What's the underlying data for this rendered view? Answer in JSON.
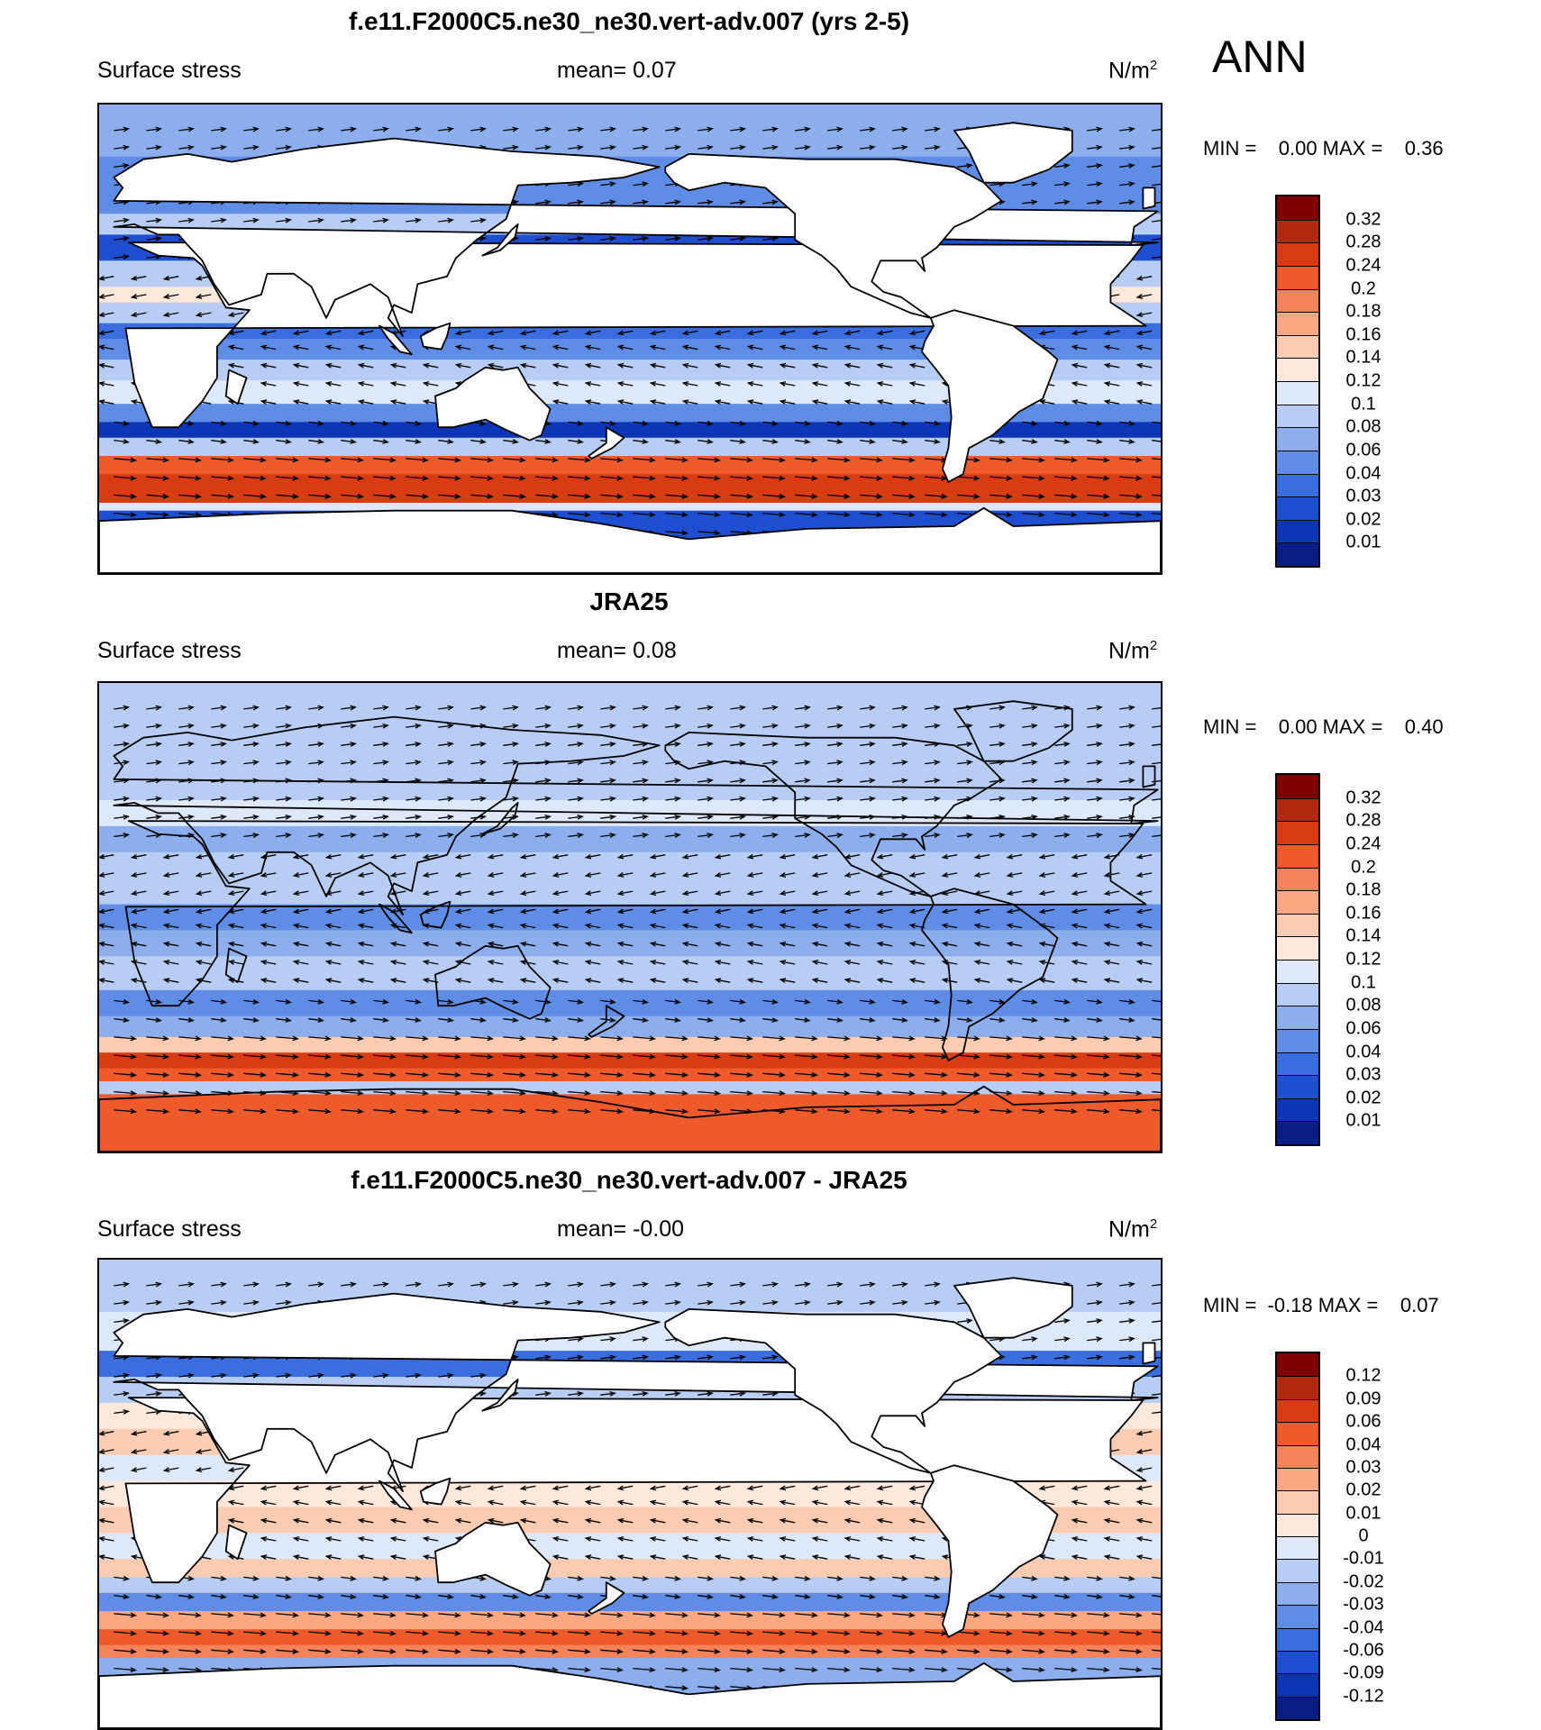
{
  "season": "ANN",
  "chart_data": [
    {
      "type": "heatmap",
      "title": "f.e11.F2000C5.ne30_ne30.vert-adv.007 (yrs 2-5)",
      "left_label": "Surface stress",
      "mean_text": "mean=   0.07",
      "units_base": "N/m",
      "units_exp": "2",
      "minmax_text": "MIN =    0.00 MAX =    0.36",
      "colorbar": {
        "levels": [
          "0.32",
          "0.28",
          "0.24",
          "0.2",
          "0.18",
          "0.16",
          "0.14",
          "0.12",
          "0.1",
          "0.08",
          "0.06",
          "0.04",
          "0.03",
          "0.02",
          "0.01"
        ],
        "colors": [
          "#800000",
          "#b22a0d",
          "#d93c10",
          "#ee5a2a",
          "#f5835a",
          "#f9a882",
          "#fbccb2",
          "#fde8dc",
          "#dde9f9",
          "#b7cdf3",
          "#8caeec",
          "#5f8ce4",
          "#3a6ddd",
          "#1f4fd1",
          "#0d35b8",
          "#0a1f86"
        ]
      },
      "bands": [
        {
          "lat": 90,
          "v": 0.06
        },
        {
          "lat": 70,
          "v": 0.05
        },
        {
          "lat": 55,
          "v": 0.04
        },
        {
          "lat": 48,
          "v": 0.09
        },
        {
          "lat": 40,
          "v": 0.02
        },
        {
          "lat": 30,
          "v": 0.09
        },
        {
          "lat": 20,
          "v": 0.12
        },
        {
          "lat": 14,
          "v": 0.08
        },
        {
          "lat": 6,
          "v": 0.03
        },
        {
          "lat": 0,
          "v": 0.05
        },
        {
          "lat": -8,
          "v": 0.08
        },
        {
          "lat": -16,
          "v": 0.11
        },
        {
          "lat": -25,
          "v": 0.04
        },
        {
          "lat": -32,
          "v": 0.015
        },
        {
          "lat": -38,
          "v": 0.09
        },
        {
          "lat": -45,
          "v": 0.2
        },
        {
          "lat": -52,
          "v": 0.27
        },
        {
          "lat": -58,
          "v": 0.25
        },
        {
          "lat": -63,
          "v": 0.1
        },
        {
          "lat": -66,
          "v": 0.02
        },
        {
          "lat": -90,
          "v": 0.01
        }
      ]
    },
    {
      "type": "heatmap",
      "title": "JRA25",
      "left_label": "Surface stress",
      "mean_text": "mean=   0.08",
      "units_base": "N/m",
      "units_exp": "2",
      "minmax_text": "MIN =    0.00 MAX =    0.40",
      "colorbar": {
        "levels": [
          "0.32",
          "0.28",
          "0.24",
          "0.2",
          "0.18",
          "0.16",
          "0.14",
          "0.12",
          "0.1",
          "0.08",
          "0.06",
          "0.04",
          "0.03",
          "0.02",
          "0.01"
        ],
        "colors": [
          "#800000",
          "#b22a0d",
          "#d93c10",
          "#ee5a2a",
          "#f5835a",
          "#f9a882",
          "#fbccb2",
          "#fde8dc",
          "#dde9f9",
          "#b7cdf3",
          "#8caeec",
          "#5f8ce4",
          "#3a6ddd",
          "#1f4fd1",
          "#0d35b8",
          "#0a1f86"
        ]
      },
      "bands": [
        {
          "lat": 90,
          "v": 0.08
        },
        {
          "lat": 70,
          "v": 0.09
        },
        {
          "lat": 55,
          "v": 0.08
        },
        {
          "lat": 45,
          "v": 0.1
        },
        {
          "lat": 35,
          "v": 0.06
        },
        {
          "lat": 25,
          "v": 0.09
        },
        {
          "lat": 15,
          "v": 0.08
        },
        {
          "lat": 5,
          "v": 0.04
        },
        {
          "lat": -5,
          "v": 0.06
        },
        {
          "lat": -15,
          "v": 0.08
        },
        {
          "lat": -28,
          "v": 0.05
        },
        {
          "lat": -38,
          "v": 0.06
        },
        {
          "lat": -46,
          "v": 0.14
        },
        {
          "lat": -52,
          "v": 0.24
        },
        {
          "lat": -58,
          "v": 0.2
        },
        {
          "lat": -63,
          "v": 0.08
        },
        {
          "lat": -68,
          "v": 0.2
        },
        {
          "lat": -90,
          "v": 0.22
        }
      ]
    },
    {
      "type": "heatmap",
      "title": "f.e11.F2000C5.ne30_ne30.vert-adv.007 - JRA25",
      "left_label": "Surface stress",
      "mean_text": "mean=  -0.00",
      "units_base": "N/m",
      "units_exp": "2",
      "minmax_text": "MIN =  -0.18 MAX =    0.07",
      "colorbar": {
        "levels": [
          "0.12",
          "0.09",
          "0.06",
          "0.04",
          "0.03",
          "0.02",
          "0.01",
          "0",
          "-0.01",
          "-0.02",
          "-0.03",
          "-0.04",
          "-0.06",
          "-0.09",
          "-0.12"
        ],
        "colors": [
          "#800000",
          "#b22a0d",
          "#d93c10",
          "#ee5a2a",
          "#f5835a",
          "#f9a882",
          "#fbccb2",
          "#fde8dc",
          "#dde9f9",
          "#b7cdf3",
          "#8caeec",
          "#5f8ce4",
          "#3a6ddd",
          "#1f4fd1",
          "#0d35b8",
          "#0a1f86"
        ]
      },
      "bands": [
        {
          "lat": 90,
          "v": -0.02
        },
        {
          "lat": 70,
          "v": -0.01
        },
        {
          "lat": 55,
          "v": -0.05
        },
        {
          "lat": 45,
          "v": -0.02
        },
        {
          "lat": 35,
          "v": 0.005
        },
        {
          "lat": 25,
          "v": 0.01
        },
        {
          "lat": 15,
          "v": -0.005
        },
        {
          "lat": 5,
          "v": 0.005
        },
        {
          "lat": -5,
          "v": 0.01
        },
        {
          "lat": -15,
          "v": -0.005
        },
        {
          "lat": -25,
          "v": 0.01
        },
        {
          "lat": -32,
          "v": -0.02
        },
        {
          "lat": -38,
          "v": -0.04
        },
        {
          "lat": -45,
          "v": 0.02
        },
        {
          "lat": -52,
          "v": 0.05
        },
        {
          "lat": -58,
          "v": 0.03
        },
        {
          "lat": -63,
          "v": -0.03
        },
        {
          "lat": -90,
          "v": -0.01
        }
      ]
    }
  ]
}
